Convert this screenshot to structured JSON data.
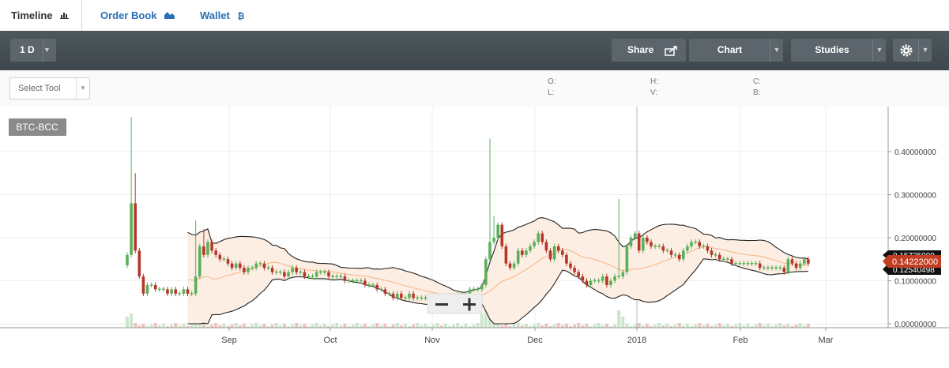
{
  "tabs": [
    {
      "label": "Timeline",
      "icon": "bar-chart-icon",
      "active": true
    },
    {
      "label": "Order Book",
      "icon": "area-chart-icon",
      "active": false
    },
    {
      "label": "Wallet",
      "icon": "bitcoin-icon",
      "active": false
    }
  ],
  "toolbar": {
    "interval": "1 D",
    "share": "Share",
    "chart": "Chart",
    "studies": "Studies",
    "settings_icon": "gear-icon",
    "bg_color": "#434c51"
  },
  "subbar": {
    "select_tool": "Select Tool",
    "ohlc_labels": [
      "O:",
      "L:",
      "H:",
      "V:",
      "C:",
      "B:"
    ]
  },
  "chart_data": {
    "type": "candlestick",
    "symbol": "BTC-BCC",
    "x_tick_labels": [
      "Sep",
      "Oct",
      "Nov",
      "Dec",
      "2018",
      "Feb",
      "Mar"
    ],
    "y_tick_labels": [
      "0.00000000",
      "0.10000000",
      "0.20000000",
      "0.30000000",
      "0.40000000"
    ],
    "ylim": [
      0,
      0.5
    ],
    "price_labels": {
      "upper": "0.15735000",
      "last": "0.14222000",
      "lower": "0.12540498"
    },
    "colors": {
      "up": "#5ab05a",
      "down": "#b5362a",
      "band_fill": "#fdeee3",
      "band_line": "#222222",
      "sma": "#f4b383",
      "last_price": "#c23d22"
    },
    "close_series": [
      0.16,
      0.28,
      0.17,
      0.11,
      0.07,
      0.09,
      0.09,
      0.08,
      0.08,
      0.08,
      0.07,
      0.08,
      0.07,
      0.07,
      0.08,
      0.07,
      0.07,
      0.11,
      0.18,
      0.16,
      0.19,
      0.17,
      0.16,
      0.15,
      0.15,
      0.14,
      0.13,
      0.14,
      0.13,
      0.12,
      0.13,
      0.13,
      0.14,
      0.14,
      0.13,
      0.13,
      0.12,
      0.12,
      0.12,
      0.11,
      0.12,
      0.13,
      0.12,
      0.12,
      0.11,
      0.11,
      0.11,
      0.12,
      0.12,
      0.12,
      0.11,
      0.11,
      0.11,
      0.11,
      0.1,
      0.1,
      0.1,
      0.1,
      0.1,
      0.09,
      0.09,
      0.09,
      0.08,
      0.08,
      0.07,
      0.07,
      0.06,
      0.07,
      0.06,
      0.06,
      0.07,
      0.06,
      0.06,
      0.06,
      0.06,
      0.06,
      0.06,
      0.06,
      0.05,
      0.06,
      0.06,
      0.06,
      0.07,
      0.07,
      0.07,
      0.08,
      0.08,
      0.08,
      0.09,
      0.15,
      0.19,
      0.2,
      0.23,
      0.18,
      0.14,
      0.13,
      0.14,
      0.17,
      0.16,
      0.17,
      0.18,
      0.19,
      0.21,
      0.19,
      0.17,
      0.15,
      0.18,
      0.17,
      0.16,
      0.14,
      0.13,
      0.12,
      0.11,
      0.1,
      0.09,
      0.1,
      0.1,
      0.1,
      0.11,
      0.09,
      0.1,
      0.11,
      0.11,
      0.12,
      0.18,
      0.2,
      0.21,
      0.17,
      0.2,
      0.19,
      0.18,
      0.18,
      0.18,
      0.17,
      0.17,
      0.16,
      0.16,
      0.15,
      0.17,
      0.18,
      0.19,
      0.19,
      0.18,
      0.18,
      0.17,
      0.16,
      0.16,
      0.15,
      0.15,
      0.15,
      0.14,
      0.14,
      0.14,
      0.14,
      0.14,
      0.14,
      0.14,
      0.13,
      0.13,
      0.13,
      0.13,
      0.13,
      0.13,
      0.12,
      0.15,
      0.14,
      0.13,
      0.14,
      0.15,
      0.14
    ],
    "spikes": [
      {
        "index": 1,
        "high": 0.48
      },
      {
        "index": 2,
        "high": 0.35
      },
      {
        "index": 17,
        "high": 0.24
      },
      {
        "index": 19,
        "high": 0.22
      },
      {
        "index": 90,
        "high": 0.43
      },
      {
        "index": 91,
        "high": 0.25
      },
      {
        "index": 122,
        "high": 0.29
      }
    ],
    "volume_spikes": [
      0,
      1,
      17,
      18,
      19,
      88,
      89,
      90,
      91,
      122,
      123
    ]
  }
}
